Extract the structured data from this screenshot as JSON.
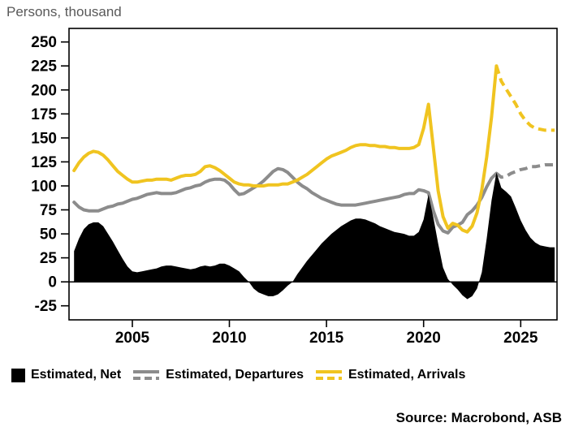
{
  "title": "Persons, thousand",
  "source": "Source: Macrobond, ASB",
  "legend": [
    {
      "label": "Estimated, Net",
      "marker": "square",
      "color": "#000000"
    },
    {
      "label": "Estimated, Departures",
      "marker": "solid-dashed-line",
      "color": "#8c8c8c"
    },
    {
      "label": "Estimated, Arrivals",
      "marker": "solid-dashed-line",
      "color": "#f0c420"
    }
  ],
  "chart_data": {
    "type": "area",
    "subtype": "filled area + solid/dashed forecast lines, no grid",
    "title": "Persons, thousand",
    "xlabel": "",
    "ylabel": "Persons, thousand",
    "legend_position": "bottom",
    "grid": false,
    "x_unit": "year (quarterly points)",
    "x": [
      2002.0,
      2002.25,
      2002.5,
      2002.75,
      2003.0,
      2003.25,
      2003.5,
      2003.75,
      2004.0,
      2004.25,
      2004.5,
      2004.75,
      2005.0,
      2005.25,
      2005.5,
      2005.75,
      2006.0,
      2006.25,
      2006.5,
      2006.75,
      2007.0,
      2007.25,
      2007.5,
      2007.75,
      2008.0,
      2008.25,
      2008.5,
      2008.75,
      2009.0,
      2009.25,
      2009.5,
      2009.75,
      2010.0,
      2010.25,
      2010.5,
      2010.75,
      2011.0,
      2011.25,
      2011.5,
      2011.75,
      2012.0,
      2012.25,
      2012.5,
      2012.75,
      2013.0,
      2013.25,
      2013.5,
      2013.75,
      2014.0,
      2014.25,
      2014.5,
      2014.75,
      2015.0,
      2015.25,
      2015.5,
      2015.75,
      2016.0,
      2016.25,
      2016.5,
      2016.75,
      2017.0,
      2017.25,
      2017.5,
      2017.75,
      2018.0,
      2018.25,
      2018.5,
      2018.75,
      2019.0,
      2019.25,
      2019.5,
      2019.75,
      2020.0,
      2020.25,
      2020.5,
      2020.75,
      2021.0,
      2021.25,
      2021.5,
      2021.75,
      2022.0,
      2022.25,
      2022.5,
      2022.75,
      2023.0,
      2023.25,
      2023.5,
      2023.75,
      2024.0,
      2024.25,
      2024.5,
      2024.75,
      2025.0,
      2025.25,
      2025.5,
      2025.75,
      2026.0,
      2026.25,
      2026.5,
      2026.75
    ],
    "series": [
      {
        "name": "Estimated, Net",
        "type": "area",
        "color": "#000000",
        "values": [
          32,
          45,
          55,
          60,
          62,
          62,
          58,
          50,
          42,
          33,
          24,
          16,
          11,
          10,
          11,
          12,
          13,
          14,
          16,
          17,
          17,
          16,
          15,
          14,
          13,
          14,
          16,
          17,
          16,
          17,
          19,
          19,
          17,
          14,
          11,
          5,
          0,
          -7,
          -11,
          -13,
          -15,
          -15,
          -13,
          -9,
          -4,
          0,
          8,
          15,
          22,
          28,
          34,
          40,
          45,
          50,
          54,
          58,
          61,
          64,
          66,
          66,
          65,
          63,
          61,
          58,
          56,
          54,
          52,
          51,
          50,
          48,
          48,
          52,
          65,
          91,
          67,
          40,
          15,
          3,
          -3,
          -8,
          -14,
          -18,
          -15,
          -7,
          10,
          45,
          85,
          114,
          98,
          94,
          89,
          77,
          64,
          54,
          46,
          41,
          38,
          37,
          36,
          36
        ]
      },
      {
        "name": "Estimated, Departures",
        "type": "line",
        "color": "#8c8c8c",
        "forecast_dashed_from_year": 2023.75,
        "values": [
          83,
          78,
          75,
          74,
          74,
          74,
          76,
          78,
          79,
          81,
          82,
          84,
          86,
          87,
          89,
          91,
          92,
          93,
          92,
          92,
          92,
          93,
          95,
          97,
          98,
          100,
          101,
          104,
          106,
          107,
          107,
          106,
          102,
          96,
          91,
          92,
          95,
          98,
          101,
          105,
          110,
          115,
          118,
          117,
          114,
          109,
          104,
          100,
          97,
          93,
          90,
          87,
          85,
          83,
          81,
          80,
          80,
          80,
          80,
          81,
          82,
          83,
          84,
          85,
          86,
          87,
          88,
          89,
          91,
          92,
          92,
          96,
          95,
          93,
          74,
          60,
          53,
          51,
          57,
          59,
          62,
          70,
          74,
          80,
          88,
          99,
          108,
          113,
          109,
          110,
          113,
          115,
          117,
          118,
          120,
          120,
          121,
          122,
          122,
          122
        ]
      },
      {
        "name": "Estimated, Arrivals",
        "type": "line",
        "color": "#f0c420",
        "forecast_dashed_from_year": 2023.75,
        "values": [
          116,
          124,
          130,
          134,
          136,
          135,
          132,
          127,
          121,
          115,
          111,
          107,
          104,
          104,
          105,
          106,
          106,
          107,
          107,
          107,
          106,
          108,
          110,
          111,
          111,
          112,
          115,
          120,
          121,
          119,
          116,
          112,
          108,
          104,
          102,
          101,
          101,
          100,
          100,
          100,
          101,
          101,
          101,
          102,
          102,
          104,
          106,
          109,
          112,
          116,
          120,
          124,
          128,
          131,
          133,
          135,
          137,
          140,
          142,
          143,
          143,
          142,
          142,
          141,
          141,
          140,
          140,
          139,
          139,
          139,
          140,
          143,
          160,
          185,
          140,
          95,
          68,
          56,
          61,
          59,
          54,
          52,
          58,
          72,
          96,
          130,
          172,
          225,
          209,
          201,
          193,
          185,
          175,
          168,
          163,
          160,
          159,
          158,
          158,
          158
        ]
      }
    ],
    "y_axis": {
      "ticks": [
        250,
        225,
        200,
        175,
        150,
        125,
        100,
        75,
        50,
        25,
        0,
        -25
      ],
      "plot_min": -39.6,
      "plot_max": 264.1
    },
    "x_axis": {
      "ticks": [
        2005,
        2010,
        2015,
        2020,
        2025
      ],
      "plot_min": 2001.74,
      "plot_max": 2026.87
    }
  }
}
